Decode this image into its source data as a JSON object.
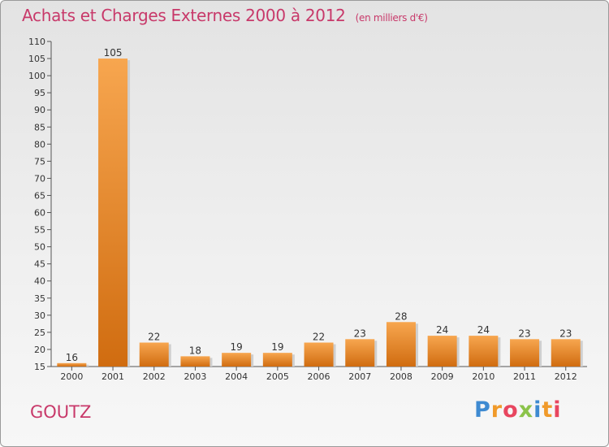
{
  "header": {
    "title": "Achats et Charges Externes 2000 à 2012",
    "unit": "(en milliers d'€)"
  },
  "commune": "GOUTZ",
  "logo": {
    "text": "Proxiti"
  },
  "colors": {
    "title": "#c8396a",
    "bar_light": "#f7a64f",
    "bar_dark": "#d06c10",
    "axis": "#555555"
  },
  "chart_data": {
    "type": "bar",
    "title": "Achats et Charges Externes 2000 à 2012",
    "subtitle": "(en milliers d'€)",
    "categories": [
      "2000",
      "2001",
      "2002",
      "2003",
      "2004",
      "2005",
      "2006",
      "2007",
      "2008",
      "2009",
      "2010",
      "2011",
      "2012"
    ],
    "values": [
      16,
      105,
      22,
      18,
      19,
      19,
      22,
      23,
      28,
      24,
      24,
      23,
      23
    ],
    "ylim": [
      15,
      110
    ],
    "yticks": [
      15,
      20,
      25,
      30,
      35,
      40,
      45,
      50,
      55,
      60,
      65,
      70,
      75,
      80,
      85,
      90,
      95,
      100,
      105,
      110
    ],
    "grid": false,
    "data_labels": true
  }
}
